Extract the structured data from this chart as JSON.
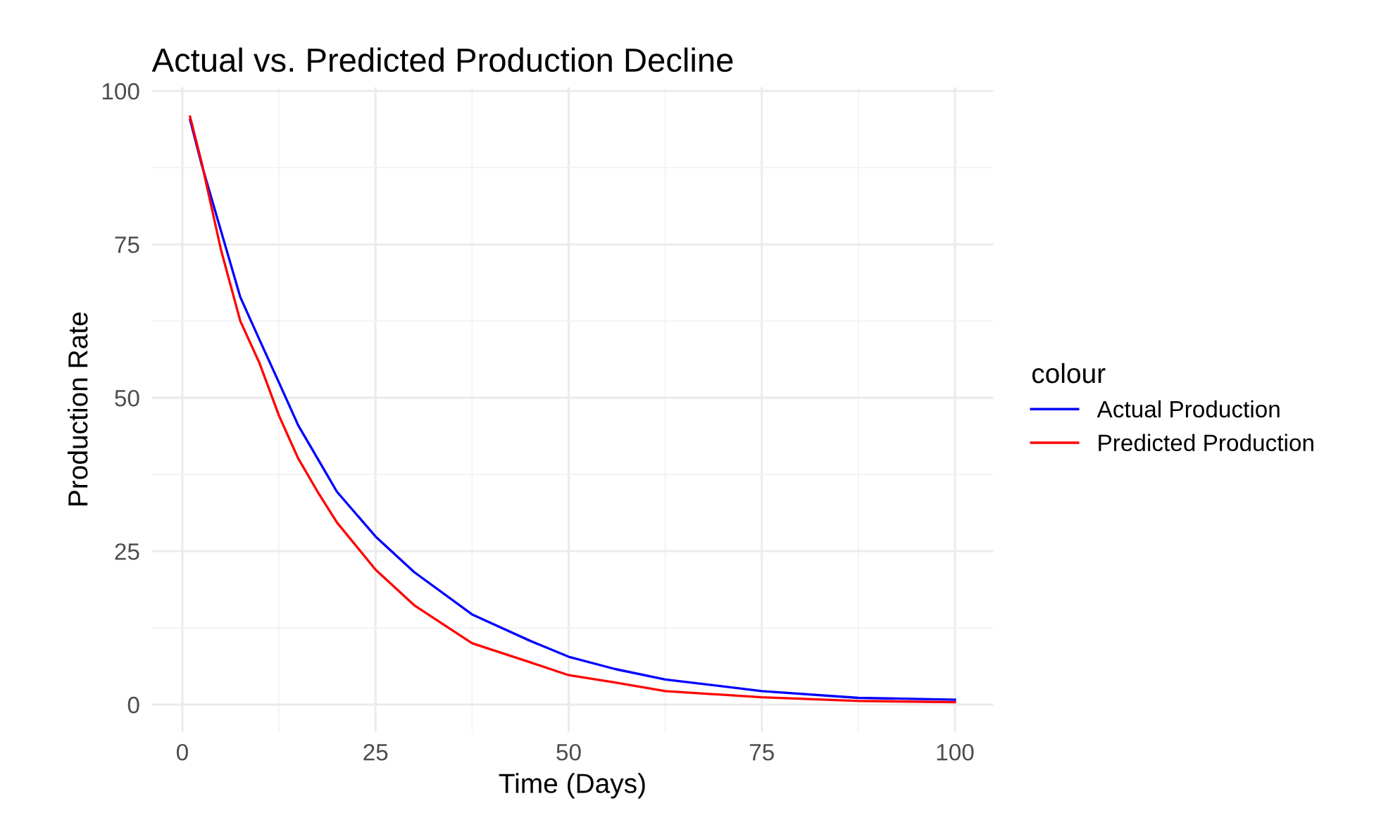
{
  "chart_data": {
    "type": "line",
    "title": "Actual vs. Predicted Production Decline",
    "xlabel": "Time (Days)",
    "ylabel": "Production Rate",
    "legend_title": "colour",
    "legend": "right",
    "grid": true,
    "xlim": [
      -3.95,
      104.95
    ],
    "ylim": [
      -4.4,
      100.6
    ],
    "xticks": [
      0,
      25,
      50,
      75,
      100
    ],
    "yticks": [
      0,
      25,
      50,
      75,
      100
    ],
    "x": [
      1,
      2.5,
      5,
      7.5,
      10,
      12.5,
      15,
      17.5,
      20,
      25,
      30,
      37.5,
      45,
      50,
      56,
      62.5,
      75,
      87.5,
      100
    ],
    "series": [
      {
        "name": "Actual Production",
        "color": "#0000ff",
        "values": [
          95.3,
          88,
          77.2,
          66.4,
          59.4,
          52.5,
          45.5,
          40.1,
          34.7,
          27.4,
          21.6,
          14.7,
          10.4,
          7.8,
          5.8,
          4.1,
          2.2,
          1.1,
          0.8
        ]
      },
      {
        "name": "Predicted Production",
        "color": "#ff0000",
        "values": [
          95.8,
          88.3,
          74.1,
          62.5,
          55.6,
          47.1,
          40.1,
          34.7,
          29.7,
          22,
          16.2,
          10,
          6.9,
          4.8,
          3.6,
          2.2,
          1.2,
          0.6,
          0.4
        ]
      }
    ]
  }
}
